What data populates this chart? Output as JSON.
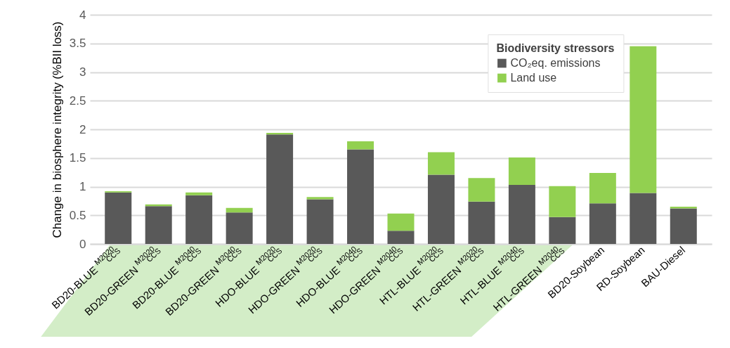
{
  "chart_data": {
    "type": "bar",
    "stacked": true,
    "ylabel": "Change in biosphere integrity (%BII loss)",
    "legend_title": "Biodiversity stressors",
    "categories": [
      "BD20-BLUE$^{M2020}$$_{CCS}$",
      "BD20-GREEN$^{M2020}$$_{CCS}$",
      "BD20-BLUE$^{M2040}$$_{CCS}$",
      "BD20-GREEN$^{M2040}$$_{CCS}$",
      "HDO-BLUE$^{M2020}$$_{CCS}$",
      "HDO-GREEN$^{M2020}$$_{CCS}$",
      "HDO-BLUE$^{M2040}$$_{CCS}$",
      "HDO-GREEN$^{M2040}$$_{CCS}$",
      "HTL-BLUE$^{M2020}$$_{CCS}$",
      "HTL-GREEN$^{M2020}$$_{CCS}$",
      "HTL-BLUE$^{M2040}$$_{CCS}$",
      "HTL-GREEN$^{M2040}$$_{CCS}$",
      "BD20-Soybean",
      "RD-Soybean",
      "BAU-Diesel"
    ],
    "series": [
      {
        "name": "CO₂eq. emissions",
        "color": "#595959",
        "values": [
          0.9,
          0.66,
          0.85,
          0.55,
          1.91,
          0.78,
          1.65,
          0.23,
          1.21,
          0.74,
          1.03,
          0.47,
          0.71,
          0.89,
          0.62
        ]
      },
      {
        "name": "Land use",
        "color": "#92d050",
        "values": [
          0.02,
          0.03,
          0.05,
          0.08,
          0.03,
          0.04,
          0.14,
          0.3,
          0.39,
          0.41,
          0.48,
          0.54,
          0.53,
          2.56,
          0.03
        ]
      }
    ],
    "ylim": [
      0,
      4
    ],
    "yticks": [
      0,
      0.5,
      1,
      1.5,
      2,
      2.5,
      3,
      3.5,
      4
    ],
    "grid": "y",
    "legend": "top right"
  }
}
